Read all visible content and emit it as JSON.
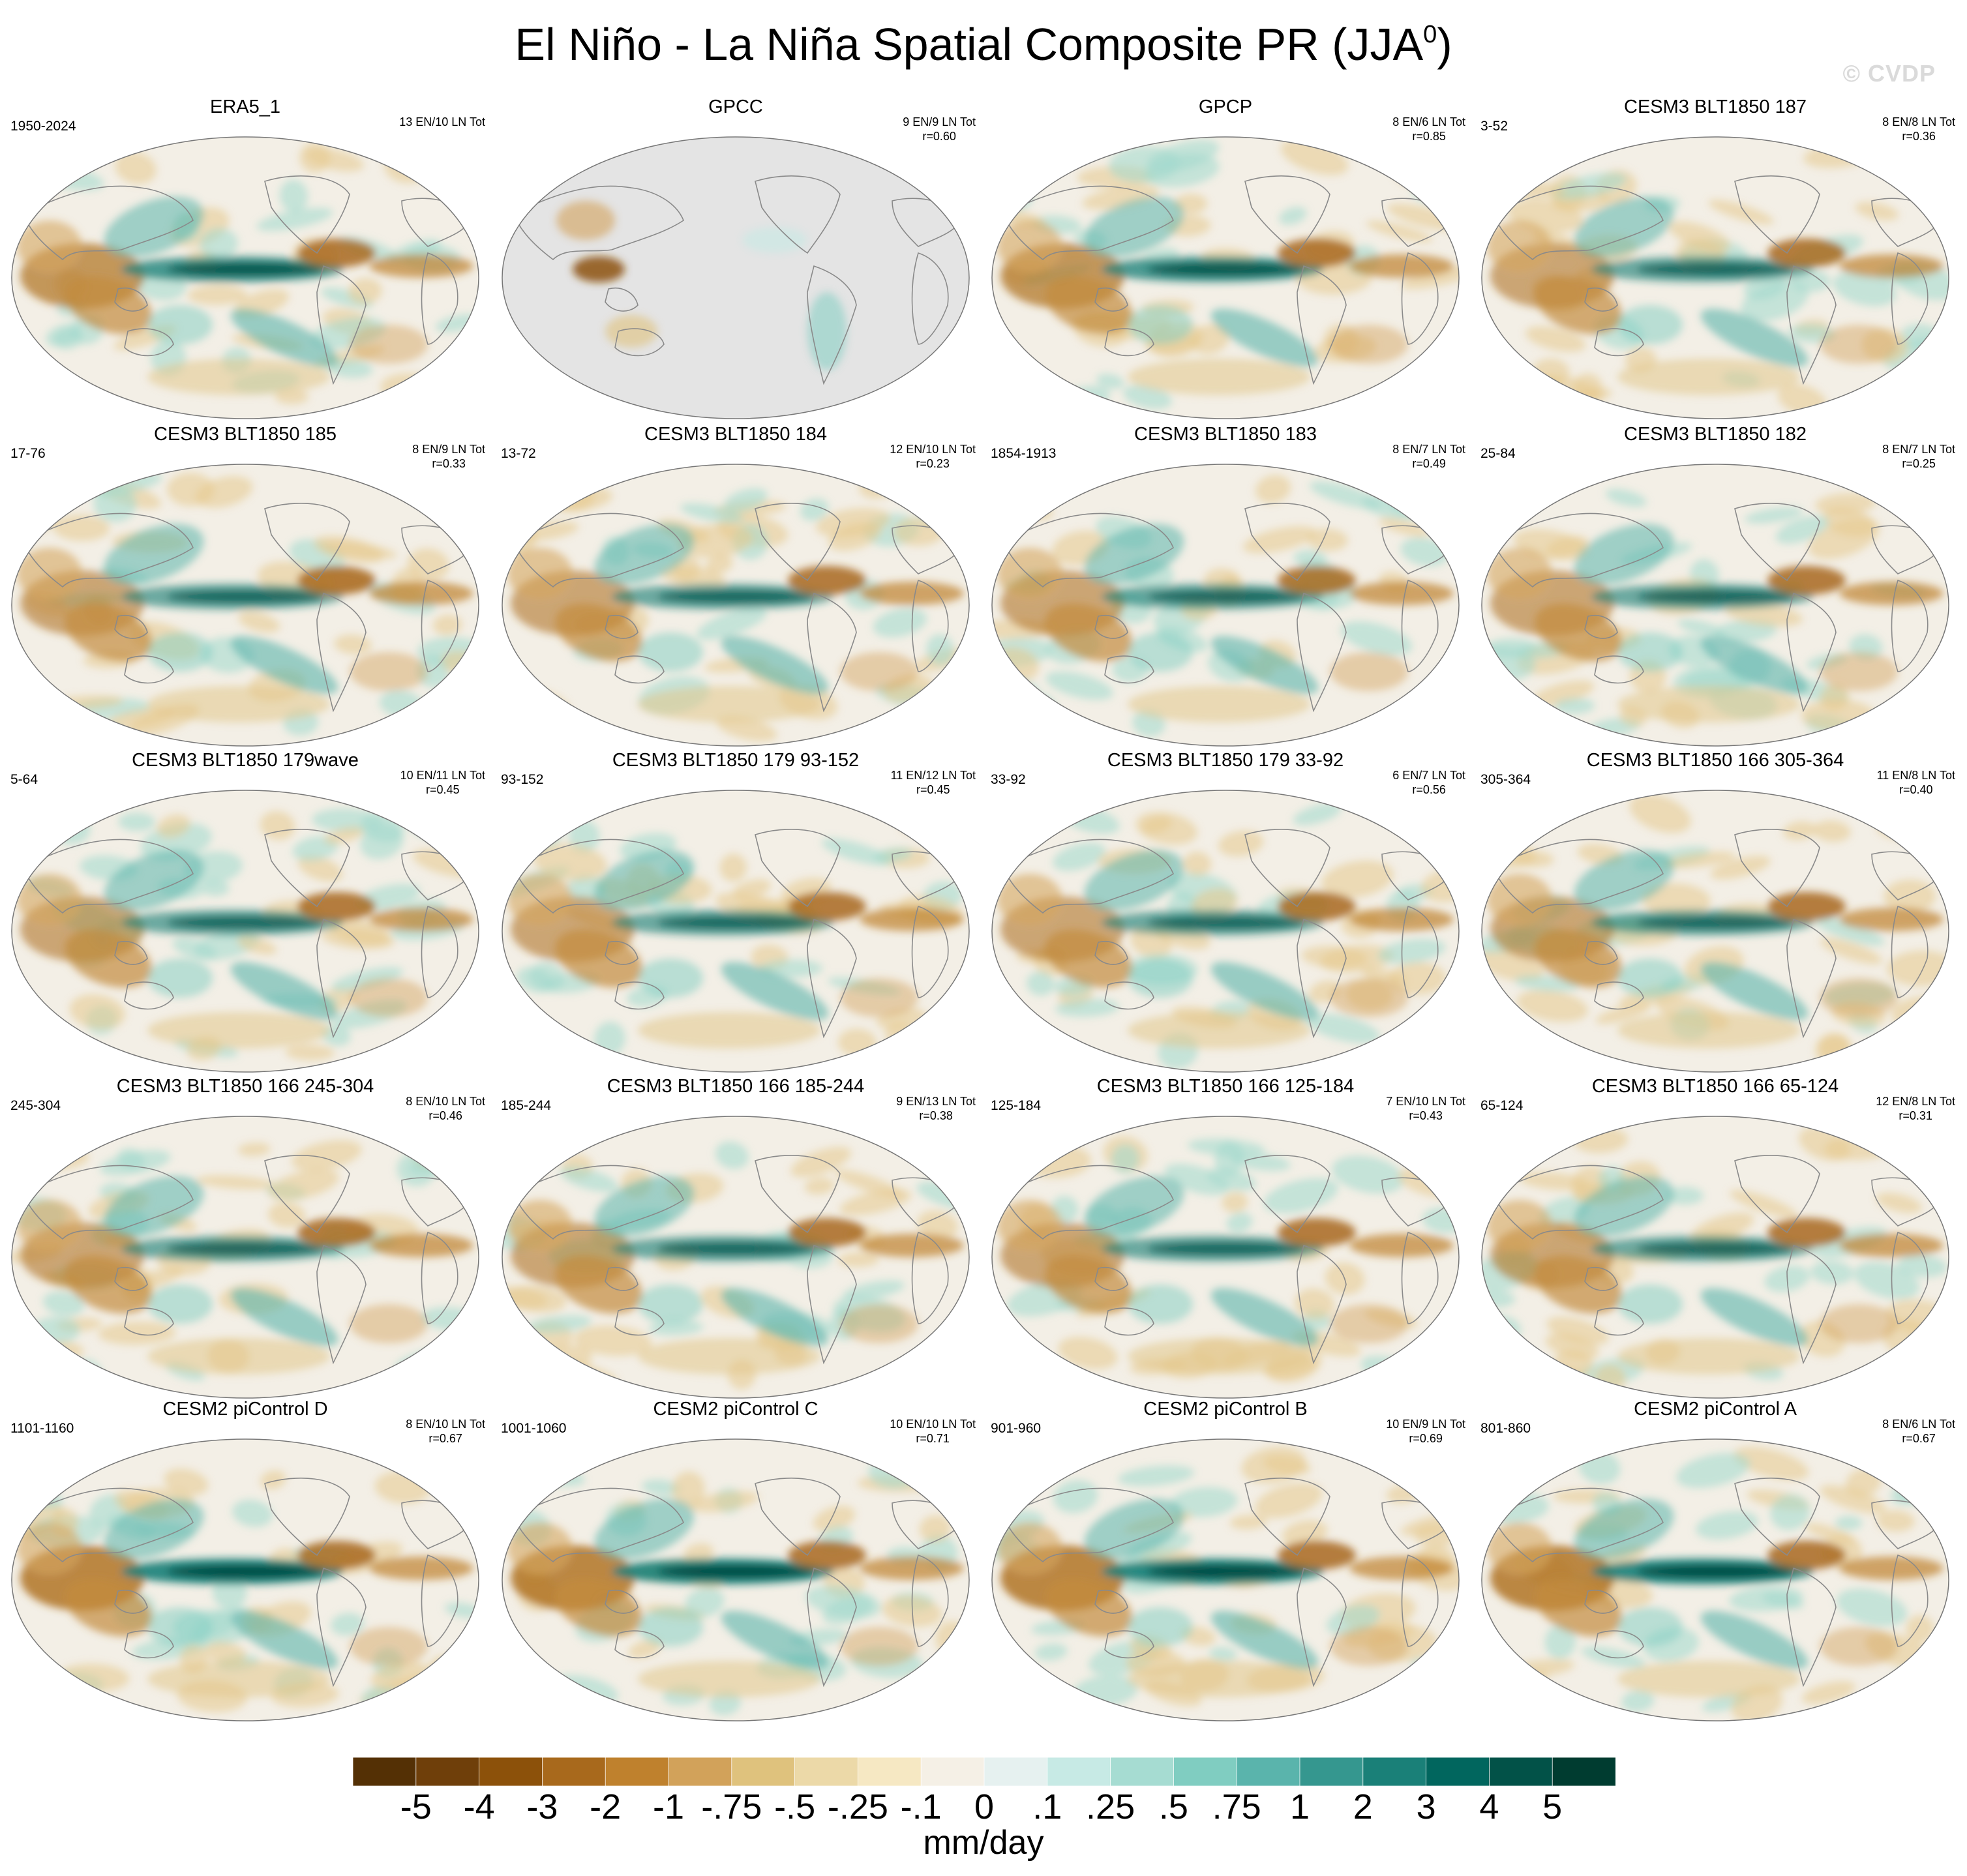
{
  "title": "El Niño - La Niña Spatial Composite PR (JJA",
  "title_sup": "0",
  "title_close": ")",
  "watermark": "© CVDP",
  "panels": [
    {
      "title": "ERA5_1",
      "years": "1950-2024",
      "count": "13 EN/10 LN Tot",
      "r": "",
      "pattern": "obs",
      "gpcc": false
    },
    {
      "title": "GPCC",
      "years": "",
      "count": "9 EN/9 LN Tot",
      "r": "r=0.60",
      "pattern": "obs",
      "gpcc": true
    },
    {
      "title": "GPCP",
      "years": "",
      "count": "8 EN/6 LN Tot",
      "r": "r=0.85",
      "pattern": "obs",
      "gpcc": false
    },
    {
      "title": "CESM3 BLT1850 187",
      "years": "3-52",
      "count": "8 EN/8 LN Tot",
      "r": "r=0.36",
      "pattern": "model",
      "gpcc": false
    },
    {
      "title": "CESM3 BLT1850 185",
      "years": "17-76",
      "count": "8 EN/9 LN Tot",
      "r": "r=0.33",
      "pattern": "model",
      "gpcc": false
    },
    {
      "title": "CESM3 BLT1850 184",
      "years": "13-72",
      "count": "12 EN/10 LN Tot",
      "r": "r=0.23",
      "pattern": "model",
      "gpcc": false
    },
    {
      "title": "CESM3 BLT1850 183",
      "years": "1854-1913",
      "count": "8 EN/7 LN Tot",
      "r": "r=0.49",
      "pattern": "model",
      "gpcc": false
    },
    {
      "title": "CESM3 BLT1850 182",
      "years": "25-84",
      "count": "8 EN/7 LN Tot",
      "r": "r=0.25",
      "pattern": "model",
      "gpcc": false
    },
    {
      "title": "CESM3 BLT1850 179wave",
      "years": "5-64",
      "count": "10 EN/11 LN Tot",
      "r": "r=0.45",
      "pattern": "model",
      "gpcc": false
    },
    {
      "title": "CESM3 BLT1850 179 93-152",
      "years": "93-152",
      "count": "11 EN/12 LN Tot",
      "r": "r=0.45",
      "pattern": "model",
      "gpcc": false
    },
    {
      "title": "CESM3 BLT1850 179 33-92",
      "years": "33-92",
      "count": "6 EN/7 LN Tot",
      "r": "r=0.56",
      "pattern": "model",
      "gpcc": false
    },
    {
      "title": "CESM3 BLT1850 166 305-364",
      "years": "305-364",
      "count": "11 EN/8 LN Tot",
      "r": "r=0.40",
      "pattern": "model",
      "gpcc": false
    },
    {
      "title": "CESM3 BLT1850 166 245-304",
      "years": "245-304",
      "count": "8 EN/10 LN Tot",
      "r": "r=0.46",
      "pattern": "model",
      "gpcc": false
    },
    {
      "title": "CESM3 BLT1850 166 185-244",
      "years": "185-244",
      "count": "9 EN/13 LN Tot",
      "r": "r=0.38",
      "pattern": "model",
      "gpcc": false
    },
    {
      "title": "CESM3 BLT1850 166 125-184",
      "years": "125-184",
      "count": "7 EN/10 LN Tot",
      "r": "r=0.43",
      "pattern": "model",
      "gpcc": false
    },
    {
      "title": "CESM3 BLT1850 166 65-124",
      "years": "65-124",
      "count": "12 EN/8 LN Tot",
      "r": "r=0.31",
      "pattern": "model",
      "gpcc": false
    },
    {
      "title": "CESM2 piControl D",
      "years": "1101-1160",
      "count": "8 EN/10 LN Tot",
      "r": "r=0.67",
      "pattern": "strong",
      "gpcc": false
    },
    {
      "title": "CESM2 piControl C",
      "years": "1001-1060",
      "count": "10 EN/10 LN Tot",
      "r": "r=0.71",
      "pattern": "strong",
      "gpcc": false
    },
    {
      "title": "CESM2 piControl B",
      "years": "901-960",
      "count": "10 EN/9 LN Tot",
      "r": "r=0.69",
      "pattern": "strong",
      "gpcc": false
    },
    {
      "title": "CESM2 piControl A",
      "years": "801-860",
      "count": "8 EN/6 LN Tot",
      "r": "r=0.67",
      "pattern": "strong",
      "gpcc": false
    }
  ],
  "colorbar": {
    "colors": [
      "#543005",
      "#6f3f0a",
      "#8c510a",
      "#a8691c",
      "#bf812d",
      "#d2a25a",
      "#dfc27d",
      "#ecd9a8",
      "#f6e8c3",
      "#f5f0e6",
      "#e6f1f0",
      "#c7eae5",
      "#a6dcd2",
      "#80cdc1",
      "#5ab4ac",
      "#35978f",
      "#1a8078",
      "#01665e",
      "#025248",
      "#003c30"
    ],
    "labels": [
      "-5",
      "-4",
      "-3",
      "-2",
      "-1",
      "-.75",
      "-.5",
      "-.25",
      "-.1",
      "0",
      ".1",
      ".25",
      ".5",
      ".75",
      "1",
      "2",
      "3",
      "4",
      "5"
    ],
    "units": "mm/day"
  }
}
